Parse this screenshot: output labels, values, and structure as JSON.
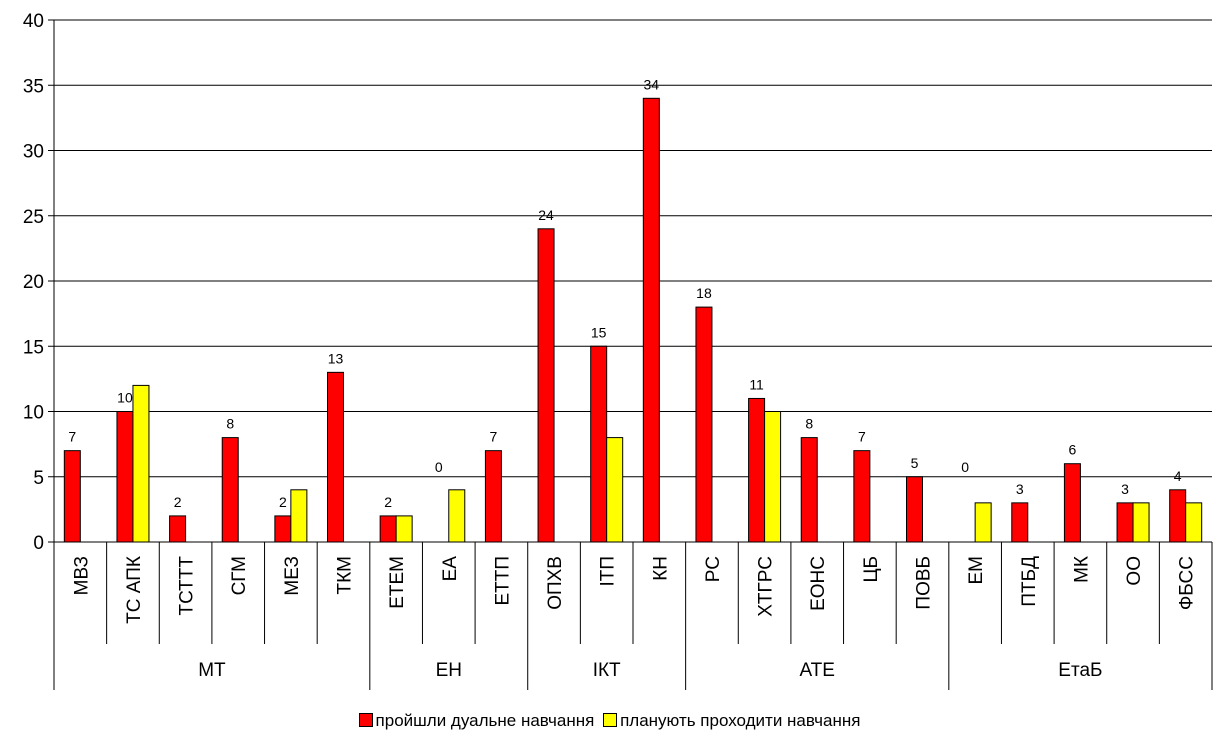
{
  "chart_data": {
    "type": "bar",
    "title": "",
    "xlabel": "",
    "ylabel": "",
    "ylim": [
      0,
      40
    ],
    "yticks": [
      0,
      5,
      10,
      15,
      20,
      25,
      30,
      35,
      40
    ],
    "grid": true,
    "legend_position": "bottom",
    "categories": [
      "МВЗ",
      "ТС АПК",
      "ТСТТТ",
      "СГМ",
      "МЕЗ",
      "ТКМ",
      "ЕТЕМ",
      "ЕА",
      "ЕТТП",
      "ОПХВ",
      "ІТП",
      "КН",
      "РС",
      "ХТГРС",
      "ЕОНС",
      "ЦБ",
      "ПОВБ",
      "ЕМ",
      "ПТБД",
      "МК",
      "ОО",
      "ФБСС"
    ],
    "groups": [
      {
        "label": "МТ",
        "start": 0,
        "count": 6
      },
      {
        "label": "ЕН",
        "start": 6,
        "count": 3
      },
      {
        "label": "ІКТ",
        "start": 9,
        "count": 3
      },
      {
        "label": "АТЕ",
        "start": 12,
        "count": 5
      },
      {
        "label": "ЕтаБ",
        "start": 17,
        "count": 5
      }
    ],
    "series": [
      {
        "name": "пройшли дуальне навчання",
        "color": "#ff0000",
        "values": [
          7,
          10,
          2,
          8,
          2,
          13,
          2,
          0,
          7,
          24,
          15,
          34,
          18,
          11,
          8,
          7,
          5,
          0,
          3,
          6,
          3,
          4
        ],
        "labels": [
          "7",
          "10",
          "2",
          "8",
          "2",
          "13",
          "2",
          "0",
          "7",
          "24",
          "15",
          "34",
          "18",
          "11",
          "8",
          "7",
          "5",
          "0",
          "3",
          "6",
          "3",
          "4"
        ]
      },
      {
        "name": "планують проходити навчання",
        "color": "#ffff00",
        "values": [
          0,
          12,
          0,
          0,
          4,
          0,
          2,
          4,
          0,
          0,
          8,
          0,
          0,
          10,
          0,
          0,
          0,
          3,
          0,
          0,
          3,
          3
        ]
      }
    ]
  }
}
